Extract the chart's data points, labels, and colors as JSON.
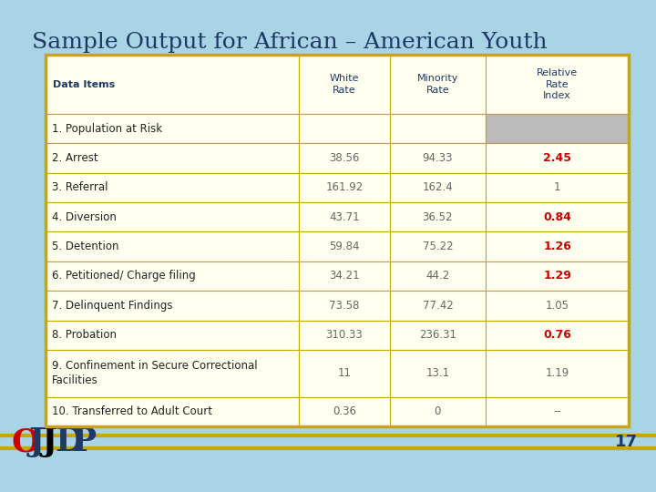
{
  "title": "Sample Output for African – American Youth",
  "title_color": "#1F3864",
  "title_fontsize": 18,
  "background_color": "#A8D4E6",
  "table_border_color": "#C8A800",
  "col_headers": [
    "Data Items",
    "White\nRate",
    "Minority\nRate",
    "Relative\nRate\nIndex"
  ],
  "col_header_bg": "#FFFFF0",
  "col_header_text_color": "#1F3864",
  "rows": [
    [
      "1. Population at Risk",
      "",
      "",
      ""
    ],
    [
      "2. Arrest",
      "38.56",
      "94.33",
      "2.45"
    ],
    [
      "3. Referral",
      "161.92",
      "162.4",
      "1"
    ],
    [
      "4. Diversion",
      "43.71",
      "36.52",
      "0.84"
    ],
    [
      "5. Detention",
      "59.84",
      "75.22",
      "1.26"
    ],
    [
      "6. Petitioned/ Charge filing",
      "34.21",
      "44.2",
      "1.29"
    ],
    [
      "7. Delinquent Findings",
      "73.58",
      "77.42",
      "1.05"
    ],
    [
      "8. Probation",
      "310.33",
      "236.31",
      "0.76"
    ],
    [
      "9. Confinement in Secure Correctional\nFacilities",
      "11",
      "13.1",
      "1.19"
    ],
    [
      "10. Transferred to Adult Court",
      "0.36",
      "0",
      "--"
    ]
  ],
  "row_bg": "#FFFFF0",
  "special_row0_last_col_bg": "#BBBBBB",
  "red_bold_values": [
    "2.45",
    "0.84",
    "1.26",
    "1.29",
    "0.76"
  ],
  "normal_rri_color": "#666666",
  "red_color": "#CC0000",
  "page_number": "17"
}
